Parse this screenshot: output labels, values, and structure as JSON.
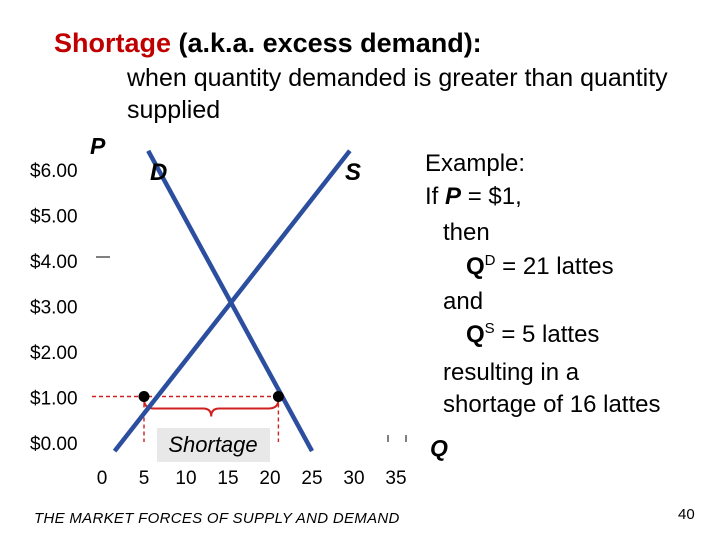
{
  "slide": {
    "title_highlight": "Shortage",
    "title_rest": " (a.k.a. excess demand):",
    "subtitle": "when quantity demanded is greater than quantity supplied",
    "footer": "THE MARKET FORCES OF SUPPLY AND DEMAND",
    "page_number": "40",
    "colors": {
      "title_highlight": "#c00000",
      "curves": "#2b4f9e",
      "guides": "#d02020",
      "points": "#000000",
      "shortage_box": "#e8e8e8"
    }
  },
  "example": {
    "line1": "Example:",
    "line2_prefix": "If ",
    "line2_var": "P",
    "line2_suffix": " = $1,",
    "line3": "then",
    "line4_q": "Q",
    "line4_sup": "D",
    "line4_rest": " = 21 lattes",
    "line5": "and",
    "line6_q": "Q",
    "line6_sup": "S",
    "line6_rest": " = 5 lattes",
    "line7": "resulting in a",
    "line8": "shortage of 16 lattes"
  },
  "chart_data": {
    "type": "line",
    "ylabel": "P",
    "xlabel": "Q",
    "y_ticks": [
      "$6.00",
      "$5.00",
      "$4.00",
      "$3.00",
      "$2.00",
      "$1.00",
      "$0.00"
    ],
    "y_tick_values": [
      6,
      5,
      4,
      3,
      2,
      1,
      0
    ],
    "x_ticks": [
      "0",
      "5",
      "10",
      "15",
      "20",
      "25",
      "30",
      "35"
    ],
    "x_tick_values": [
      0,
      5,
      10,
      15,
      20,
      25,
      30,
      35
    ],
    "xlim": [
      0,
      35
    ],
    "ylim": [
      0,
      6
    ],
    "series": [
      {
        "name": "D",
        "points": [
          [
            5.5,
            6.4
          ],
          [
            25,
            -0.2
          ]
        ]
      },
      {
        "name": "S",
        "points": [
          [
            1.5,
            -0.2
          ],
          [
            29.5,
            6.4
          ]
        ]
      }
    ],
    "highlight_points": [
      [
        5,
        1
      ],
      [
        21,
        1
      ]
    ],
    "guide_price": 1,
    "annotation": "Shortage",
    "grid": false
  }
}
